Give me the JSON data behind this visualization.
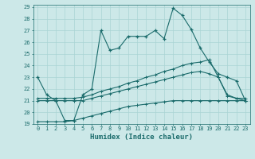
{
  "title": "",
  "xlabel": "Humidex (Indice chaleur)",
  "bg_color": "#cce8e8",
  "grid_color": "#aad4d4",
  "line_color": "#1a6b6b",
  "xlim": [
    -0.5,
    23.5
  ],
  "ylim": [
    19,
    29.2
  ],
  "x_ticks": [
    0,
    1,
    2,
    3,
    4,
    5,
    6,
    7,
    8,
    9,
    10,
    11,
    12,
    13,
    14,
    15,
    16,
    17,
    18,
    19,
    20,
    21,
    22,
    23
  ],
  "y_ticks": [
    19,
    20,
    21,
    22,
    23,
    24,
    25,
    26,
    27,
    28,
    29
  ],
  "line1_x": [
    0,
    1,
    2,
    3,
    4,
    5,
    6,
    7,
    8,
    9,
    10,
    11,
    12,
    13,
    14,
    15,
    16,
    17,
    18,
    19,
    20,
    21,
    22,
    23
  ],
  "line1_y": [
    23.0,
    21.5,
    21.0,
    19.3,
    19.3,
    21.5,
    22.0,
    27.0,
    25.3,
    25.5,
    26.5,
    26.5,
    26.5,
    27.0,
    26.3,
    28.9,
    28.3,
    27.1,
    25.5,
    24.3,
    23.3,
    23.0,
    22.7,
    21.0
  ],
  "line2_x": [
    0,
    1,
    2,
    3,
    4,
    5,
    6,
    7,
    8,
    9,
    10,
    11,
    12,
    13,
    14,
    15,
    16,
    17,
    18,
    19,
    20,
    21,
    22,
    23
  ],
  "line2_y": [
    21.2,
    21.2,
    21.2,
    21.2,
    21.2,
    21.3,
    21.5,
    21.8,
    22.0,
    22.2,
    22.5,
    22.7,
    23.0,
    23.2,
    23.5,
    23.7,
    24.0,
    24.2,
    24.3,
    24.5,
    23.0,
    21.5,
    21.2,
    21.2
  ],
  "line3_x": [
    0,
    1,
    2,
    3,
    4,
    5,
    6,
    7,
    8,
    9,
    10,
    11,
    12,
    13,
    14,
    15,
    16,
    17,
    18,
    19,
    20,
    21,
    22,
    23
  ],
  "line3_y": [
    21.0,
    21.0,
    21.0,
    21.0,
    21.0,
    21.0,
    21.2,
    21.4,
    21.6,
    21.8,
    22.0,
    22.2,
    22.4,
    22.6,
    22.8,
    23.0,
    23.2,
    23.4,
    23.5,
    23.3,
    23.0,
    21.4,
    21.2,
    21.0
  ],
  "line4_x": [
    0,
    1,
    2,
    3,
    4,
    5,
    6,
    7,
    8,
    9,
    10,
    11,
    12,
    13,
    14,
    15,
    16,
    17,
    18,
    19,
    20,
    21,
    22,
    23
  ],
  "line4_y": [
    19.2,
    19.2,
    19.2,
    19.2,
    19.3,
    19.5,
    19.7,
    19.9,
    20.1,
    20.3,
    20.5,
    20.6,
    20.7,
    20.8,
    20.9,
    21.0,
    21.0,
    21.0,
    21.0,
    21.0,
    21.0,
    21.0,
    21.0,
    21.0
  ]
}
